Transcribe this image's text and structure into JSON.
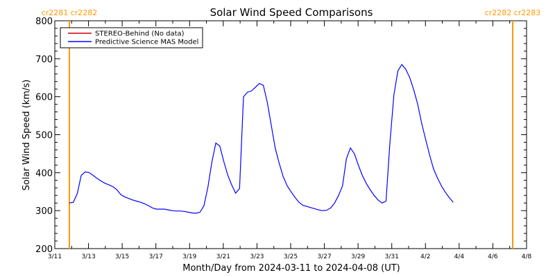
{
  "chart_data": {
    "type": "line",
    "title": "Solar Wind Speed Comparisons",
    "xlabel": "Month/Day from 2024-03-11 to 2024-04-08 (UT)",
    "ylabel": "Solar Wind Speed (km/s)",
    "ylim": [
      200,
      800
    ],
    "yticks": [
      "200",
      "300",
      "400",
      "500",
      "600",
      "700",
      "800"
    ],
    "x_start": "2024-03-11",
    "x_end": "2024-04-08",
    "xticks": [
      "3/11",
      "3/13",
      "3/15",
      "3/17",
      "3/19",
      "3/21",
      "3/23",
      "3/25",
      "3/27",
      "3/29",
      "3/31",
      "4/2",
      "4/4",
      "4/6",
      "4/8"
    ],
    "legend_position": "top-left",
    "legend": [
      {
        "name": "STEREO-Behind (No data)",
        "color": "#cc0000"
      },
      {
        "name": "Predictive Science MAS Model",
        "color": "#0000ff"
      }
    ],
    "carrington_markers": [
      {
        "label": "cr2281 cr2282",
        "x": "2024-03-11",
        "color": "#ff9900"
      },
      {
        "label": "cr2282 cr2283",
        "x": "2024-04-08",
        "color": "#ff9900"
      }
    ],
    "series": [
      {
        "name": "Predictive Science MAS Model",
        "color": "#0000ff",
        "points": [
          [
            "2024-03-11T00:00",
            320
          ],
          [
            "2024-03-11T06:00",
            322
          ],
          [
            "2024-03-11T12:00",
            345
          ],
          [
            "2024-03-11T18:00",
            393
          ],
          [
            "2024-03-12T00:00",
            402
          ],
          [
            "2024-03-12T06:00",
            400
          ],
          [
            "2024-03-12T12:00",
            393
          ],
          [
            "2024-03-12T18:00",
            385
          ],
          [
            "2024-03-13T00:00",
            378
          ],
          [
            "2024-03-13T06:00",
            372
          ],
          [
            "2024-03-13T12:00",
            368
          ],
          [
            "2024-03-13T18:00",
            363
          ],
          [
            "2024-03-14T00:00",
            355
          ],
          [
            "2024-03-14T06:00",
            342
          ],
          [
            "2024-03-14T12:00",
            336
          ],
          [
            "2024-03-14T18:00",
            332
          ],
          [
            "2024-03-15T00:00",
            328
          ],
          [
            "2024-03-15T06:00",
            325
          ],
          [
            "2024-03-15T12:00",
            322
          ],
          [
            "2024-03-15T18:00",
            318
          ],
          [
            "2024-03-16T00:00",
            313
          ],
          [
            "2024-03-16T06:00",
            307
          ],
          [
            "2024-03-16T12:00",
            304
          ],
          [
            "2024-03-16T18:00",
            304
          ],
          [
            "2024-03-17T00:00",
            304
          ],
          [
            "2024-03-17T06:00",
            302
          ],
          [
            "2024-03-17T12:00",
            300
          ],
          [
            "2024-03-17T18:00",
            299
          ],
          [
            "2024-03-18T00:00",
            299
          ],
          [
            "2024-03-18T06:00",
            298
          ],
          [
            "2024-03-18T12:00",
            296
          ],
          [
            "2024-03-18T18:00",
            294
          ],
          [
            "2024-03-19T00:00",
            293
          ],
          [
            "2024-03-19T06:00",
            296
          ],
          [
            "2024-03-19T12:00",
            313
          ],
          [
            "2024-03-19T18:00",
            362
          ],
          [
            "2024-03-20T00:00",
            428
          ],
          [
            "2024-03-20T06:00",
            478
          ],
          [
            "2024-03-20T12:00",
            470
          ],
          [
            "2024-03-20T18:00",
            430
          ],
          [
            "2024-03-21T00:00",
            394
          ],
          [
            "2024-03-21T06:00",
            368
          ],
          [
            "2024-03-21T12:00",
            346
          ],
          [
            "2024-03-21T18:00",
            358
          ],
          [
            "2024-03-22T00:00",
            600
          ],
          [
            "2024-03-22T06:00",
            612
          ],
          [
            "2024-03-22T12:00",
            615
          ],
          [
            "2024-03-22T18:00",
            625
          ],
          [
            "2024-03-23T00:00",
            635
          ],
          [
            "2024-03-23T06:00",
            630
          ],
          [
            "2024-03-23T12:00",
            585
          ],
          [
            "2024-03-23T18:00",
            525
          ],
          [
            "2024-03-24T00:00",
            465
          ],
          [
            "2024-03-24T06:00",
            425
          ],
          [
            "2024-03-24T12:00",
            390
          ],
          [
            "2024-03-24T18:00",
            366
          ],
          [
            "2024-03-25T00:00",
            350
          ],
          [
            "2024-03-25T06:00",
            335
          ],
          [
            "2024-03-25T12:00",
            322
          ],
          [
            "2024-03-25T18:00",
            314
          ],
          [
            "2024-03-26T00:00",
            311
          ],
          [
            "2024-03-26T06:00",
            308
          ],
          [
            "2024-03-26T12:00",
            305
          ],
          [
            "2024-03-26T18:00",
            302
          ],
          [
            "2024-03-27T00:00",
            300
          ],
          [
            "2024-03-27T06:00",
            301
          ],
          [
            "2024-03-27T12:00",
            307
          ],
          [
            "2024-03-27T18:00",
            320
          ],
          [
            "2024-03-28T00:00",
            340
          ],
          [
            "2024-03-28T06:00",
            365
          ],
          [
            "2024-03-28T12:00",
            437
          ],
          [
            "2024-03-28T18:00",
            465
          ],
          [
            "2024-03-29T00:00",
            450
          ],
          [
            "2024-03-29T06:00",
            420
          ],
          [
            "2024-03-29T12:00",
            393
          ],
          [
            "2024-03-29T18:00",
            372
          ],
          [
            "2024-03-30T00:00",
            355
          ],
          [
            "2024-03-30T06:00",
            340
          ],
          [
            "2024-03-30T12:00",
            328
          ],
          [
            "2024-03-30T18:00",
            320
          ],
          [
            "2024-03-31T00:00",
            325
          ],
          [
            "2024-03-31T06:00",
            480
          ],
          [
            "2024-03-31T12:00",
            605
          ],
          [
            "2024-03-31T18:00",
            668
          ],
          [
            "2024-04-01T00:00",
            685
          ],
          [
            "2024-04-01T06:00",
            672
          ],
          [
            "2024-04-01T12:00",
            650
          ],
          [
            "2024-04-01T18:00",
            618
          ],
          [
            "2024-04-02T00:00",
            580
          ],
          [
            "2024-04-02T06:00",
            530
          ],
          [
            "2024-04-02T12:00",
            488
          ],
          [
            "2024-04-02T18:00",
            447
          ],
          [
            "2024-04-03T00:00",
            410
          ],
          [
            "2024-04-03T06:00",
            386
          ],
          [
            "2024-04-03T12:00",
            365
          ],
          [
            "2024-04-03T18:00",
            348
          ],
          [
            "2024-04-04T00:00",
            334
          ],
          [
            "2024-04-04T06:00",
            322
          ]
        ]
      }
    ]
  }
}
